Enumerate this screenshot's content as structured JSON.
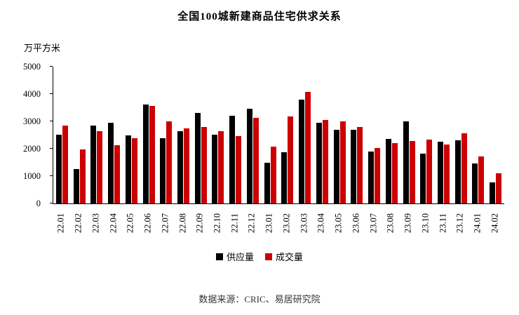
{
  "title": "全国100城新建商品住宅供求关系",
  "unit_label": "万平方米",
  "source": "数据来源：CRIC、易居研究院",
  "colors": {
    "supply": "#000000",
    "transaction": "#cc0000"
  },
  "legend": [
    {
      "label": "供应量",
      "color": "#000000"
    },
    {
      "label": "成交量",
      "color": "#cc0000"
    }
  ],
  "chart_data": {
    "type": "bar",
    "title": "全国100城新建商品住宅供求关系",
    "ylabel": "万平方米",
    "ylim": [
      0,
      5000
    ],
    "ytick_step": 1000,
    "grid": false,
    "legend_position": "bottom",
    "categories": [
      "22.01",
      "22.02",
      "22.03",
      "22.04",
      "22.05",
      "22.06",
      "22.07",
      "22.08",
      "22.09",
      "22.10",
      "22.11",
      "22.12",
      "23.01",
      "23.02",
      "23.03",
      "23.04",
      "23.05",
      "23.06",
      "23.07",
      "23.08",
      "23.09",
      "23.10",
      "23.11",
      "23.12",
      "24.01",
      "24.02"
    ],
    "series": [
      {
        "name": "供应量",
        "color": "#000000",
        "values": [
          2500,
          1250,
          2850,
          2950,
          2480,
          3620,
          2380,
          2650,
          3300,
          2500,
          3200,
          3450,
          1480,
          1880,
          3800,
          2950,
          2700,
          2700,
          1900,
          2350,
          3000,
          1820,
          2250,
          2300,
          1450,
          780
        ]
      },
      {
        "name": "成交量",
        "color": "#cc0000",
        "values": [
          2850,
          1980,
          2650,
          2130,
          2380,
          3560,
          3000,
          2750,
          2800,
          2650,
          2450,
          3130,
          2070,
          3170,
          4080,
          3050,
          3000,
          2800,
          2030,
          2200,
          2280,
          2330,
          2150,
          2560,
          1720,
          1100
        ]
      }
    ]
  }
}
